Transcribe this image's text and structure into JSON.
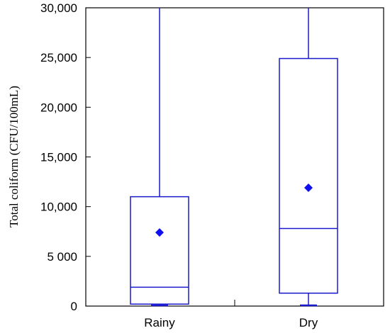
{
  "chart_data": {
    "type": "box",
    "ylabel": "Total coliform (CFU/100mL)",
    "xlabel": "",
    "ylim": [
      0,
      30000
    ],
    "yticks": [
      {
        "value": 0,
        "label": "0"
      },
      {
        "value": 5000,
        "label": "5 000"
      },
      {
        "value": 10000,
        "label": "10,000"
      },
      {
        "value": 15000,
        "label": "15,000"
      },
      {
        "value": 20000,
        "label": "20,000"
      },
      {
        "value": 25000,
        "label": "25,000"
      },
      {
        "value": 30000,
        "label": "30,000"
      }
    ],
    "categories": [
      "Rainy",
      "Dry"
    ],
    "boxes": [
      {
        "category": "Rainy",
        "whisker_low": 0,
        "q1": 200,
        "median": 1900,
        "q3": 11000,
        "whisker_high": 30000,
        "mean": 7400
      },
      {
        "category": "Dry",
        "whisker_low": 0,
        "q1": 1300,
        "median": 7800,
        "q3": 24900,
        "whisker_high": 30000,
        "mean": 11900
      }
    ],
    "color": "#1a1acc",
    "mean_marker_color": "#1010ee",
    "grid": false,
    "legend": "none"
  }
}
